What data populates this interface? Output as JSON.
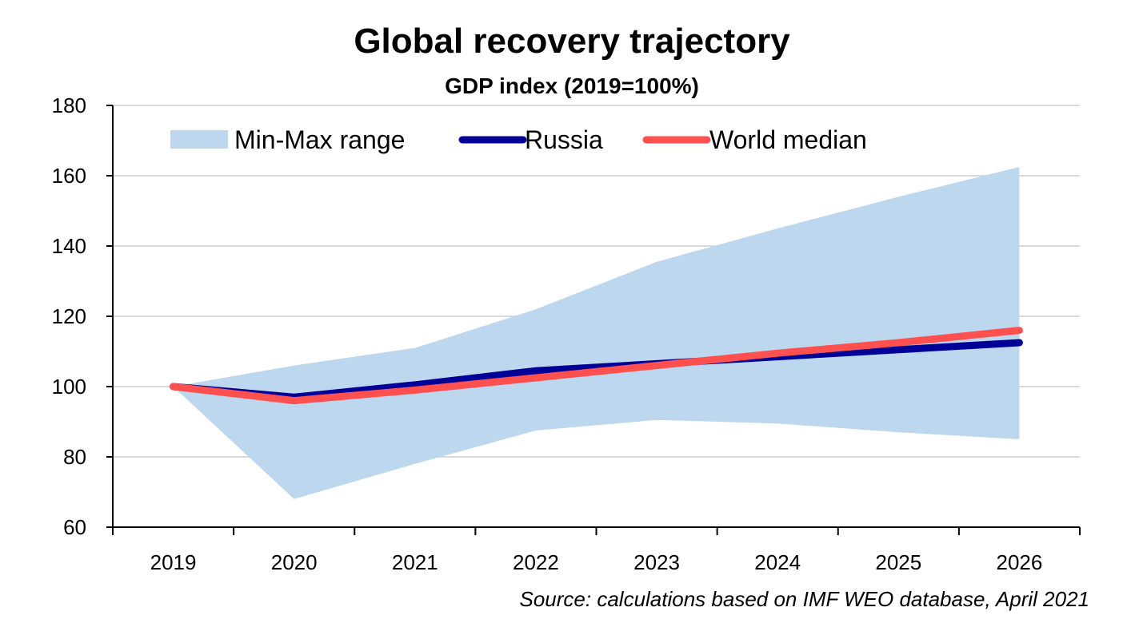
{
  "chart_data": {
    "type": "line",
    "title": "Global recovery trajectory",
    "subtitle": "GDP index (2019=100%)",
    "xlabel": "",
    "ylabel": "",
    "categories": [
      "2019",
      "2020",
      "2021",
      "2022",
      "2023",
      "2024",
      "2025",
      "2026"
    ],
    "ylim": [
      60,
      180
    ],
    "yticks": [
      60,
      80,
      100,
      120,
      140,
      160,
      180
    ],
    "grid": "horizontal",
    "legend_position": "top",
    "band": {
      "name": "Min-Max range",
      "color": "#bdd7ee",
      "min": [
        100,
        68,
        78,
        87.5,
        90.5,
        89.5,
        87,
        85
      ],
      "max": [
        100,
        106,
        111,
        122,
        135.5,
        145,
        154,
        162.5
      ]
    },
    "series": [
      {
        "name": "Russia",
        "color": "#000099",
        "values": [
          100,
          97,
          100.5,
          104.5,
          106.5,
          108.5,
          110.5,
          112.5
        ]
      },
      {
        "name": "World median",
        "color": "#ff5050",
        "values": [
          100,
          96,
          99,
          102.5,
          106,
          109.5,
          112.5,
          116
        ]
      }
    ],
    "source": "Source: calculations based on IMF WEO database, April 2021"
  }
}
